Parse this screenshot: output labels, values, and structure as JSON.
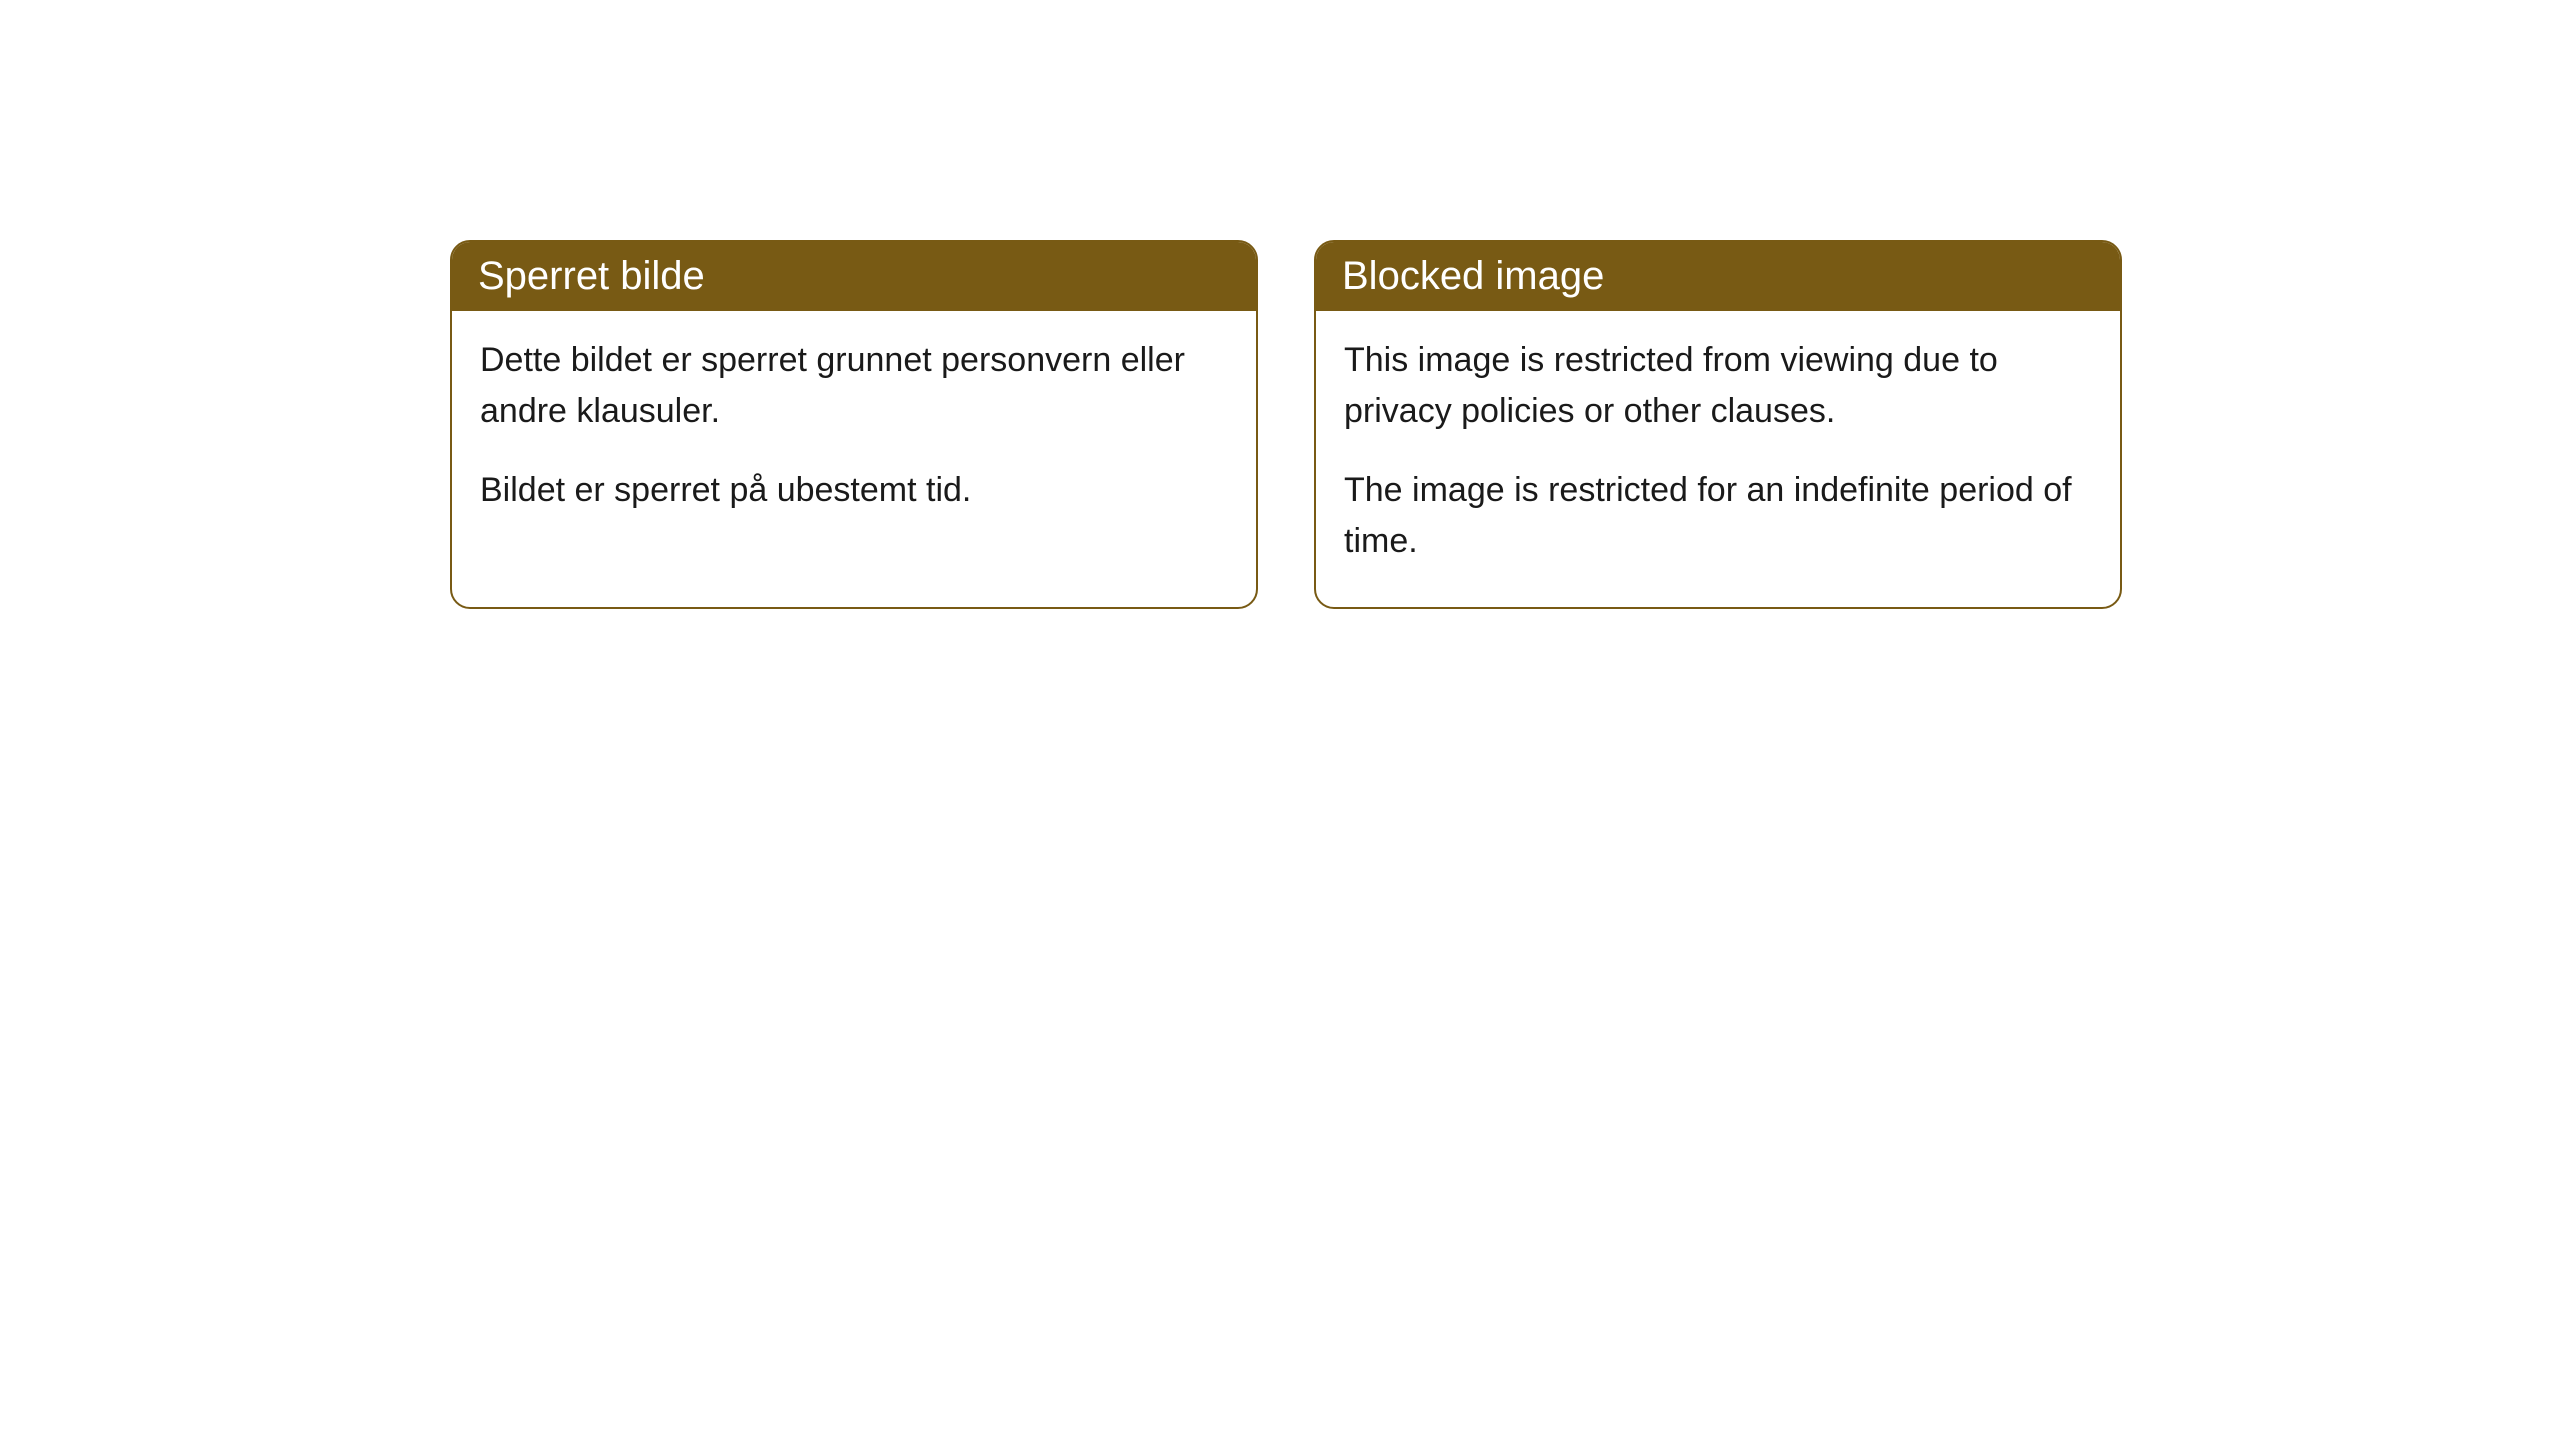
{
  "cards": [
    {
      "header": "Sperret bilde",
      "paragraph1": "Dette bildet er sperret grunnet personvern eller andre klausuler.",
      "paragraph2": "Bildet er sperret på ubestemt tid."
    },
    {
      "header": "Blocked image",
      "paragraph1": "This image is restricted from viewing due to privacy policies or other clauses.",
      "paragraph2": "The image is restricted for an indefinite period of time."
    }
  ],
  "styling": {
    "header_background": "#785a14",
    "header_text_color": "#ffffff",
    "border_color": "#785a14",
    "body_text_color": "#1a1a1a",
    "card_background": "#ffffff",
    "page_background": "#ffffff",
    "border_radius": 20,
    "header_fontsize": 40,
    "body_fontsize": 34
  }
}
